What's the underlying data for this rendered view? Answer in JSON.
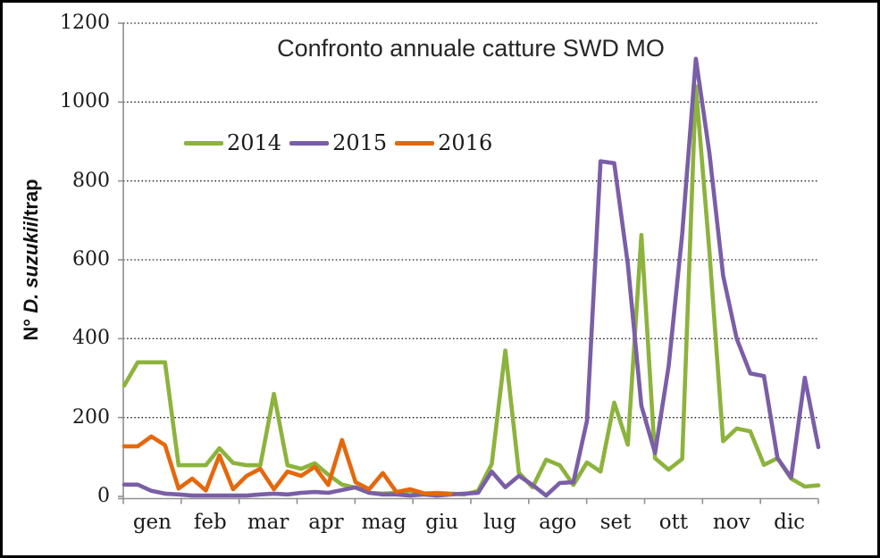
{
  "chart_data": {
    "type": "line",
    "title": "Confronto annuale catture SWD MO",
    "ylabel": "N° D. suzukii/trap",
    "ylabel_parts": {
      "prefix": "N° ",
      "italic": "D. suzukii",
      "suffix": "/trap"
    },
    "x_unit": "week-of-year",
    "categories": [
      "gen",
      "feb",
      "mar",
      "apr",
      "mag",
      "giu",
      "lug",
      "ago",
      "set",
      "ott",
      "nov",
      "dic"
    ],
    "y_ticks": [
      0,
      200,
      400,
      600,
      800,
      1000,
      1200
    ],
    "ylim": [
      0,
      1200
    ],
    "grid": "horizontal-dotted",
    "legend_position": "top-left-inside",
    "axis_color": "#909090",
    "gridline_color": "#1a1a1a",
    "series": [
      {
        "name": "2014",
        "color": "#8CB33C",
        "values": [
          281,
          340,
          340,
          340,
          79,
          79,
          79,
          122,
          85,
          79,
          79,
          260,
          79,
          70,
          84,
          55,
          30,
          22,
          9,
          7,
          9,
          14,
          7,
          9,
          7,
          5,
          14,
          82,
          370,
          60,
          23,
          93,
          79,
          29,
          86,
          63,
          238,
          131,
          663,
          97,
          68,
          95,
          1040,
          620,
          140,
          172,
          165,
          80,
          97,
          45,
          25,
          28
        ]
      },
      {
        "name": "2015",
        "color": "#7A5EA7",
        "values": [
          30,
          30,
          14,
          7,
          5,
          2,
          2,
          2,
          2,
          2,
          5,
          7,
          5,
          9,
          11,
          9,
          16,
          23,
          9,
          5,
          5,
          2,
          5,
          2,
          5,
          7,
          9,
          63,
          23,
          52,
          29,
          2,
          34,
          36,
          192,
          850,
          845,
          590,
          230,
          110,
          330,
          665,
          1110,
          870,
          560,
          400,
          312,
          305,
          97,
          48,
          301,
          125
        ]
      },
      {
        "name": "2016",
        "color": "#E4680C",
        "values": [
          127,
          127,
          152,
          130,
          20,
          45,
          15,
          104,
          18,
          52,
          70,
          18,
          63,
          52,
          75,
          29,
          143,
          36,
          18,
          59,
          11,
          18,
          8,
          7,
          6
        ]
      }
    ]
  }
}
